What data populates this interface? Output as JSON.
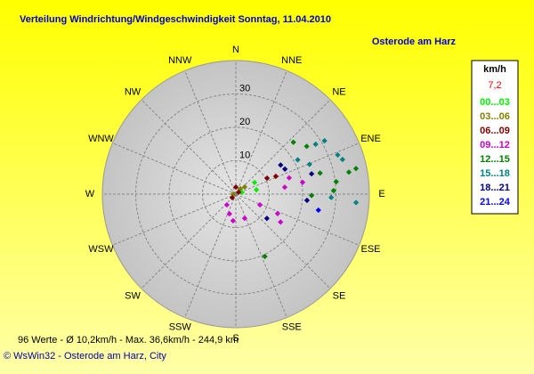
{
  "chart_data": {
    "type": "polar_scatter",
    "title": "Verteilung Windrichtung/Windgeschwindigkeit  Sonntag, 11.04.2010",
    "subtitle": "Osterode am Harz",
    "directions": [
      "N",
      "NNE",
      "NE",
      "ENE",
      "E",
      "ESE",
      "SE",
      "SSE",
      "S",
      "SSW",
      "SW",
      "WSW",
      "W",
      "WNW",
      "NW",
      "NNW"
    ],
    "rlim": [
      0,
      40
    ],
    "rticks": [
      10,
      20,
      30
    ],
    "legend_title": "km/h",
    "current": {
      "value": 7.2,
      "label": "7,2"
    },
    "current_color": "#ff0000",
    "series": [
      {
        "name": "00...03",
        "color": "#00ee00",
        "x": [
          58,
          78,
          74
        ],
        "values": [
          6.6,
          6.3,
          1.9
        ]
      },
      {
        "name": "03...06",
        "color": "#808000",
        "x": [
          40,
          270,
          51
        ],
        "values": [
          2.1,
          0.8,
          3.4
        ]
      },
      {
        "name": "06...09",
        "color": "#800000",
        "x": [
          56,
          0,
          225,
          63,
          66
        ],
        "values": [
          1.0,
          2.1,
          1.5,
          10.5,
          13.1
        ]
      },
      {
        "name": "09...12",
        "color": "#cc00cc",
        "x": [
          73,
          82,
          80,
          115,
          122,
          198,
          220,
          186,
          160,
          114
        ],
        "values": [
          16.7,
          14.8,
          20.3,
          13.8,
          15.8,
          6.2,
          4.2,
          8.0,
          7.7,
          7.9
        ]
      },
      {
        "name": "12...15",
        "color": "#008000",
        "x": [
          78,
          79,
          76,
          83,
          88,
          91,
          155,
          56,
          48
        ],
        "values": [
          36.8,
          34.5,
          26.0,
          30.3,
          29.3,
          22.7,
          20.6,
          25.6,
          23.2
        ]
      },
      {
        "name": "15...18",
        "color": "#008080",
        "x": [
          58,
          59,
          69,
          94,
          72,
          68,
          92,
          61
        ],
        "values": [
          28.2,
          31.0,
          32.7,
          36.1,
          33.6,
          23.8,
          28.6,
          21.2
        ]
      },
      {
        "name": "18...21",
        "color": "#000080",
        "x": [
          95,
          63,
          75,
          128,
          57
        ],
        "values": [
          21.4,
          16.5,
          23.5,
          11.8,
          16.0
        ]
      },
      {
        "name": "21...24",
        "color": "#0000ff",
        "x": [
          101
        ],
        "values": [
          25.2
        ]
      }
    ],
    "footer_stats": "96 Werte   -   Ø 10,2km/h  -  Max. 36,6km/h   -   244,9 km",
    "copyright": "© WsWin32  -  Osterode am Harz, City"
  }
}
